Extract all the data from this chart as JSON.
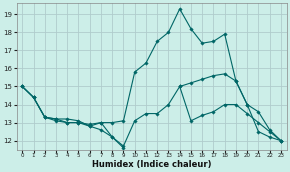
{
  "xlabel": "Humidex (Indice chaleur)",
  "background_color": "#cceee8",
  "grid_color": "#b0cccc",
  "line_color": "#006666",
  "xlim": [
    -0.5,
    23.5
  ],
  "ylim": [
    11.5,
    19.6
  ],
  "yticks": [
    12,
    13,
    14,
    15,
    16,
    17,
    18,
    19
  ],
  "xticks": [
    0,
    1,
    2,
    3,
    4,
    5,
    6,
    7,
    8,
    9,
    10,
    11,
    12,
    13,
    14,
    15,
    16,
    17,
    18,
    19,
    20,
    21,
    22,
    23
  ],
  "series": [
    [
      15.0,
      14.4,
      13.3,
      13.1,
      13.0,
      13.0,
      12.9,
      13.0,
      12.2,
      11.7,
      13.1,
      13.5,
      13.5,
      14.0,
      15.0,
      13.1,
      13.4,
      13.6,
      14.0,
      14.0,
      13.5,
      13.0,
      12.5,
      12.0
    ],
    [
      15.0,
      14.4,
      13.3,
      13.2,
      13.2,
      13.1,
      12.8,
      13.0,
      13.0,
      13.1,
      15.8,
      16.3,
      17.5,
      18.0,
      19.3,
      18.2,
      17.4,
      17.5,
      17.9,
      15.3,
      14.0,
      13.6,
      12.6,
      12.0
    ],
    [
      15.0,
      14.4,
      13.3,
      13.2,
      13.0,
      13.0,
      12.8,
      12.6,
      12.2,
      11.6,
      null,
      null,
      null,
      null,
      null,
      null,
      null,
      null,
      null,
      null,
      null,
      null,
      null,
      null
    ],
    [
      null,
      null,
      null,
      null,
      null,
      null,
      null,
      null,
      null,
      null,
      null,
      null,
      null,
      null,
      15.0,
      15.2,
      15.4,
      15.6,
      15.7,
      15.3,
      14.0,
      12.5,
      12.2,
      12.0
    ]
  ]
}
